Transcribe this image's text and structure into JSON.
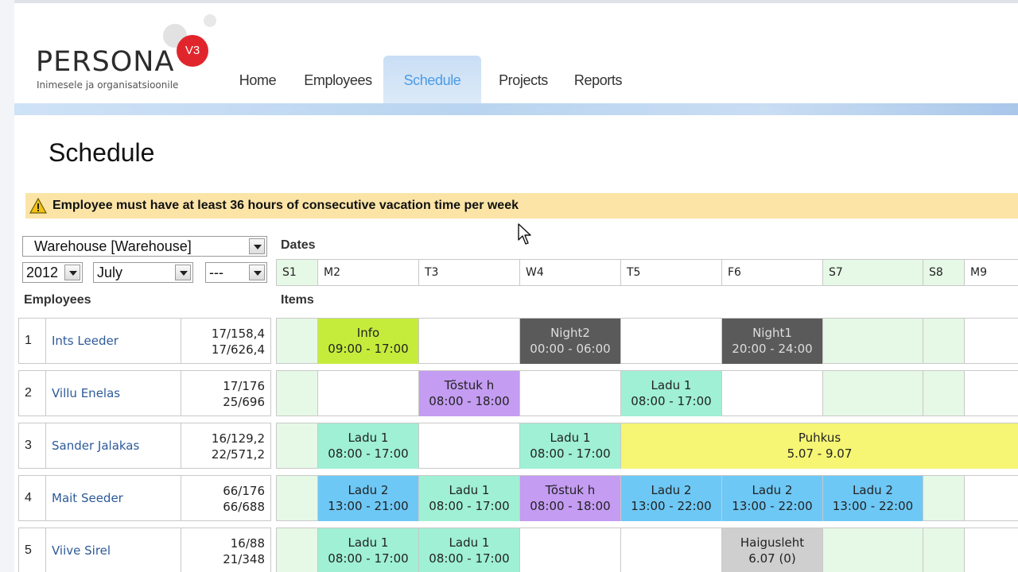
{
  "app": {
    "logo_word": "PERSONA",
    "logo_badge": "V3",
    "logo_tagline": "Inimesele ja organisatsioonile",
    "brand_color": "#e0262c"
  },
  "nav": {
    "items": [
      {
        "label": "Home",
        "active": false
      },
      {
        "label": "Employees",
        "active": false
      },
      {
        "label": "Schedule",
        "active": true
      },
      {
        "label": "Projects",
        "active": false
      },
      {
        "label": "Reports",
        "active": false
      }
    ]
  },
  "page": {
    "title": "Schedule",
    "warning": "Employee must have at least 36 hours of consecutive vacation time per week",
    "warning_icon": "warning-triangle-icon"
  },
  "filters": {
    "department": "Warehouse [Warehouse]",
    "year": "2012",
    "month": "July",
    "week": "---"
  },
  "labels": {
    "dates": "Dates",
    "employees": "Employees",
    "items": "Items"
  },
  "days": [
    {
      "label": "S1",
      "weekend": true
    },
    {
      "label": "M2",
      "weekend": false
    },
    {
      "label": "T3",
      "weekend": false
    },
    {
      "label": "W4",
      "weekend": false
    },
    {
      "label": "T5",
      "weekend": false
    },
    {
      "label": "F6",
      "weekend": false
    },
    {
      "label": "S7",
      "weekend": true
    },
    {
      "label": "S8",
      "weekend": true
    },
    {
      "label": "M9",
      "weekend": false
    }
  ],
  "colors": {
    "info": "#c5ec3b",
    "night": "#5a5a5a",
    "tostuk": "#c49cf2",
    "ladu1": "#9ff0d4",
    "ladu2": "#6ec8f5",
    "puhkus": "#f6f574",
    "haigusleht": "#cfcfcf",
    "weekend": "#e6f8e6"
  },
  "employees": [
    {
      "num": "1",
      "name": "Ints Leeder",
      "hours1": "17/158,4",
      "hours2": "17/626,4",
      "items": [
        {
          "day": 1,
          "span": 1,
          "title": "Info",
          "time": "09:00 - 17:00",
          "kind": "info"
        },
        {
          "day": 3,
          "span": 1,
          "title": "Night2",
          "time": "00:00 - 06:00",
          "kind": "night"
        },
        {
          "day": 5,
          "span": 1,
          "title": "Night1",
          "time": "20:00 - 24:00",
          "kind": "night"
        }
      ]
    },
    {
      "num": "2",
      "name": "Villu Enelas",
      "hours1": "17/176",
      "hours2": "25/696",
      "items": [
        {
          "day": 2,
          "span": 1,
          "title": "Tõstuk h",
          "time": "08:00 - 18:00",
          "kind": "tostuk"
        },
        {
          "day": 4,
          "span": 1,
          "title": "Ladu 1",
          "time": "08:00 - 17:00",
          "kind": "ladu1"
        }
      ]
    },
    {
      "num": "3",
      "name": "Sander Jalakas",
      "hours1": "16/129,2",
      "hours2": "22/571,2",
      "items": [
        {
          "day": 1,
          "span": 1,
          "title": "Ladu 1",
          "time": "08:00 - 17:00",
          "kind": "ladu1"
        },
        {
          "day": 3,
          "span": 1,
          "title": "Ladu 1",
          "time": "08:00 - 17:00",
          "kind": "ladu1"
        },
        {
          "day": 4,
          "span": 5,
          "title": "Puhkus",
          "time": "5.07 - 9.07",
          "kind": "puhkus"
        }
      ]
    },
    {
      "num": "4",
      "name": "Mait Seeder",
      "hours1": "66/176",
      "hours2": "66/688",
      "items": [
        {
          "day": 1,
          "span": 1,
          "title": "Ladu 2",
          "time": "13:00 - 21:00",
          "kind": "ladu2"
        },
        {
          "day": 2,
          "span": 1,
          "title": "Ladu 1",
          "time": "08:00 - 17:00",
          "kind": "ladu1"
        },
        {
          "day": 3,
          "span": 1,
          "title": "Tõstuk h",
          "time": "08:00 - 18:00",
          "kind": "tostuk"
        },
        {
          "day": 4,
          "span": 1,
          "title": "Ladu 2",
          "time": "13:00 - 22:00",
          "kind": "ladu2"
        },
        {
          "day": 5,
          "span": 1,
          "title": "Ladu 2",
          "time": "13:00 - 22:00",
          "kind": "ladu2"
        },
        {
          "day": 6,
          "span": 1,
          "title": "Ladu 2",
          "time": "13:00 - 22:00",
          "kind": "ladu2"
        }
      ]
    },
    {
      "num": "5",
      "name": "Viive Sirel",
      "hours1": "16/88",
      "hours2": "21/348",
      "items": [
        {
          "day": 1,
          "span": 1,
          "title": "Ladu 1",
          "time": "08:00 - 17:00",
          "kind": "ladu1"
        },
        {
          "day": 2,
          "span": 1,
          "title": "Ladu 1",
          "time": "08:00 - 17:00",
          "kind": "ladu1"
        },
        {
          "day": 5,
          "span": 1,
          "title": "Haigusleht",
          "time": "6.07 (0)",
          "kind": "haigusleht"
        }
      ]
    }
  ]
}
